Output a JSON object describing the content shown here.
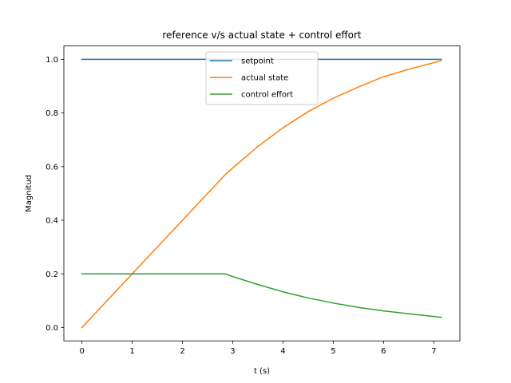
{
  "chart_data": {
    "type": "line",
    "title": "reference v/s actual state + control effort",
    "xlabel": "t (s)",
    "ylabel": "Magnitud",
    "xlim": [
      -0.36,
      7.52
    ],
    "ylim": [
      -0.05,
      1.05
    ],
    "xticks": [
      0,
      1,
      2,
      3,
      4,
      5,
      6,
      7
    ],
    "yticks": [
      0.0,
      0.2,
      0.4,
      0.6,
      0.8,
      1.0
    ],
    "xtick_labels": [
      "0",
      "1",
      "2",
      "3",
      "4",
      "5",
      "6",
      "7"
    ],
    "ytick_labels": [
      "0.0",
      "0.2",
      "0.4",
      "0.6",
      "0.8",
      "1.0"
    ],
    "grid": false,
    "legend_position": "upper-center",
    "series": [
      {
        "name": "setpoint",
        "color": "#1f77b4",
        "x": [
          0,
          7.15
        ],
        "y": [
          1.0,
          1.0
        ]
      },
      {
        "name": "actual state",
        "color": "#ff7f0e",
        "x": [
          0,
          0.5,
          1.0,
          1.5,
          2.0,
          2.5,
          2.85,
          3.0,
          3.5,
          4.0,
          4.5,
          5.0,
          5.5,
          6.0,
          6.5,
          7.15
        ],
        "y": [
          0.0,
          0.1,
          0.2,
          0.3,
          0.4,
          0.5,
          0.57,
          0.595,
          0.675,
          0.745,
          0.805,
          0.855,
          0.897,
          0.935,
          0.963,
          0.995
        ]
      },
      {
        "name": "control effort",
        "color": "#2ca02c",
        "x": [
          0,
          0.5,
          1.0,
          1.5,
          2.0,
          2.5,
          2.85,
          3.0,
          3.5,
          4.0,
          4.5,
          5.0,
          5.5,
          6.0,
          6.5,
          7.15
        ],
        "y": [
          0.2,
          0.2,
          0.2,
          0.2,
          0.2,
          0.2,
          0.2,
          0.19,
          0.16,
          0.133,
          0.11,
          0.091,
          0.075,
          0.062,
          0.051,
          0.038
        ]
      }
    ]
  }
}
